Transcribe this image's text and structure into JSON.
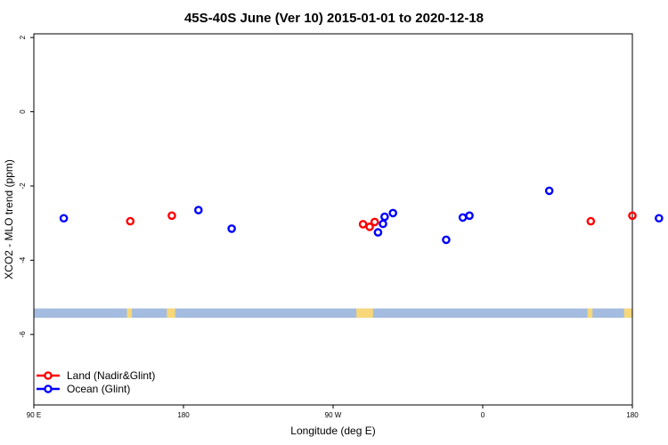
{
  "chart_data": {
    "type": "scatter",
    "title": "45S-40S June (Ver 10)   2015-01-01 to 2020-12-18",
    "xlabel": "Longitude (deg E)",
    "ylabel": "XCO2 - MLO trend (ppm)",
    "xlim": [
      90,
      450
    ],
    "ylim": [
      -7.9,
      2.1
    ],
    "x_ticks": [
      {
        "value": 90,
        "label": "90 E"
      },
      {
        "value": 180,
        "label": "180"
      },
      {
        "value": 270,
        "label": "90 W"
      },
      {
        "value": 360,
        "label": "0"
      },
      {
        "value": 450,
        "label": "180"
      }
    ],
    "y_ticks": [
      {
        "value": 2,
        "label": "2"
      },
      {
        "value": 0,
        "label": "0"
      },
      {
        "value": -2,
        "label": "-2"
      },
      {
        "value": -4,
        "label": "-4"
      },
      {
        "value": -6,
        "label": "-6"
      }
    ],
    "legend_position": "bottom-left",
    "series": [
      {
        "name": "Land (Nadir&Glint)",
        "color": "#ff0000",
        "points": [
          {
            "x": 148,
            "y": -2.95
          },
          {
            "x": 173,
            "y": -2.8
          },
          {
            "x": 288,
            "y": -3.03
          },
          {
            "x": 292,
            "y": -3.1
          },
          {
            "x": 295,
            "y": -2.97
          },
          {
            "x": 425,
            "y": -2.95
          },
          {
            "x": 450,
            "y": -2.8
          }
        ]
      },
      {
        "name": "Ocean (Glint)",
        "color": "#0000ff",
        "points": [
          {
            "x": 108,
            "y": -2.87
          },
          {
            "x": 189,
            "y": -2.65
          },
          {
            "x": 209,
            "y": -3.15
          },
          {
            "x": 297,
            "y": -3.25
          },
          {
            "x": 300,
            "y": -3.02
          },
          {
            "x": 301,
            "y": -2.83
          },
          {
            "x": 306,
            "y": -2.73
          },
          {
            "x": 338,
            "y": -3.45
          },
          {
            "x": 348,
            "y": -2.85
          },
          {
            "x": 352,
            "y": -2.8
          },
          {
            "x": 400,
            "y": -2.13
          },
          {
            "x": 466,
            "y": -2.87
          }
        ]
      }
    ],
    "latitude_band": {
      "y_range": [
        -5.55,
        -5.3
      ],
      "ocean_color": "#a3bcdf",
      "land_color": "#f7d77a",
      "land_segments": [
        [
          146,
          149
        ],
        [
          170,
          175
        ],
        [
          284,
          294
        ],
        [
          423,
          426
        ],
        [
          445,
          450
        ]
      ]
    }
  }
}
